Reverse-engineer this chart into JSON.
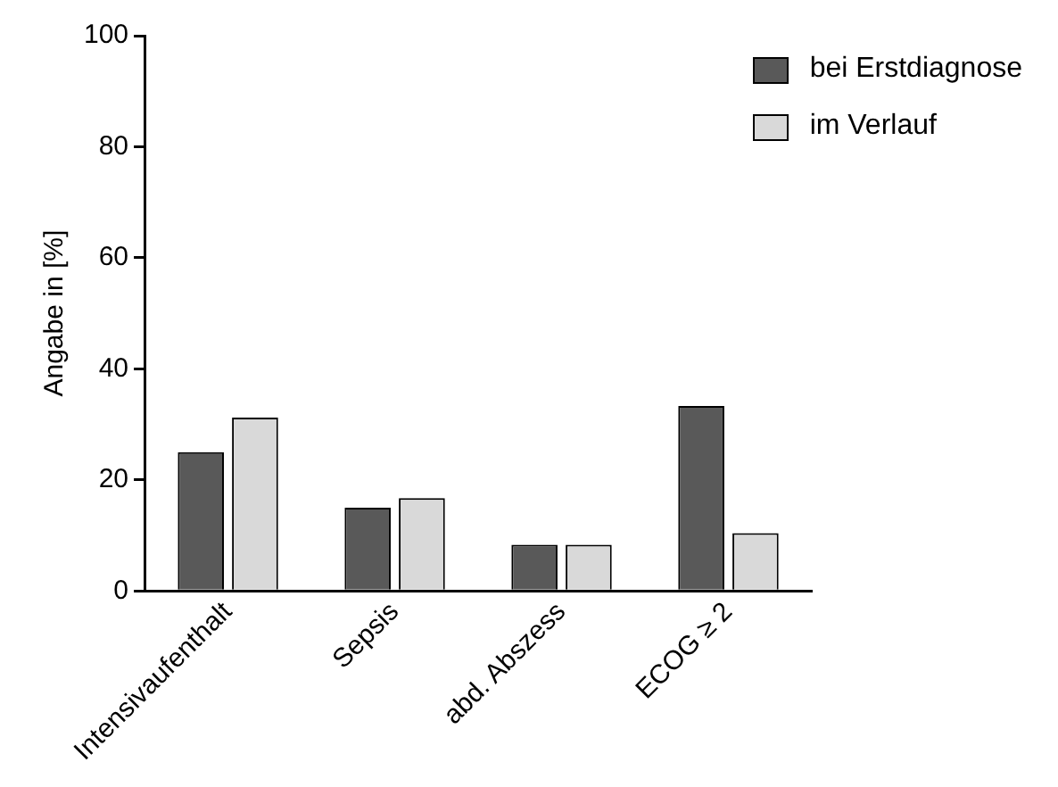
{
  "chart_data": {
    "type": "bar",
    "ylabel": "Angabe in [%]",
    "categories": [
      "Intensivaufenthalt",
      "Sepsis",
      "abd. Abszess",
      "ECOG ≥ 2"
    ],
    "series": [
      {
        "name": "bei Erstdiagnose",
        "color": "#595959",
        "values": [
          25,
          15,
          8.3,
          33.3
        ]
      },
      {
        "name": "im Verlauf",
        "color": "#d9d9d9",
        "values": [
          31.2,
          16.7,
          8.3,
          10.4
        ]
      }
    ],
    "ylim": [
      0,
      100
    ],
    "yticks": [
      0,
      20,
      40,
      60,
      80,
      100
    ],
    "grid": false,
    "legend": "top right"
  }
}
